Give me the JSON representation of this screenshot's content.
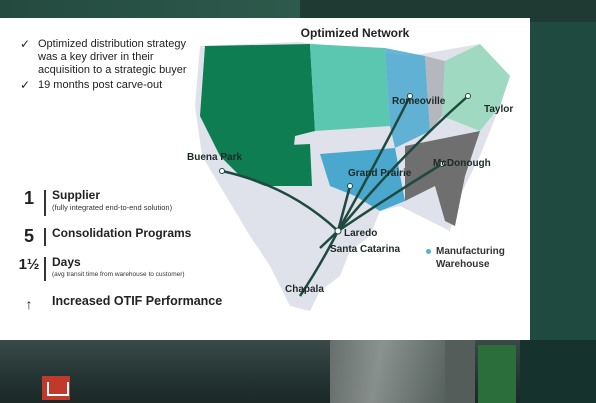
{
  "bullets": [
    "Optimized distribution strategy was a key driver in their acquisition to a strategic buyer",
    "19 months post carve-out"
  ],
  "stats": [
    {
      "num": "1",
      "label": "Supplier",
      "sub": "(fully integrated end-to-end solution)"
    },
    {
      "num": "5",
      "label": "Consolidation Programs",
      "sub": ""
    },
    {
      "num": "1½",
      "label": "Days",
      "sub": "(avg transit time from warehouse to customer)"
    },
    {
      "num": "↑",
      "label": "Increased OTIF Performance",
      "sub": ""
    }
  ],
  "map": {
    "title": "Optimized Network",
    "cities": [
      "Buena Park",
      "Romeoville",
      "Taylor",
      "McDonough",
      "Grand Prairie",
      "Laredo",
      "Santa Catarina",
      "Chapala"
    ],
    "legend": "Manufacturing Warehouse",
    "colors": {
      "west": "#0e7d52",
      "central": "#5cc7b1",
      "midwest": "#4aa8cf",
      "east": "#9fd9c1",
      "southeast": "#6f6f6f",
      "base": "#dfe2ea",
      "route": "#1e4a3f"
    }
  }
}
